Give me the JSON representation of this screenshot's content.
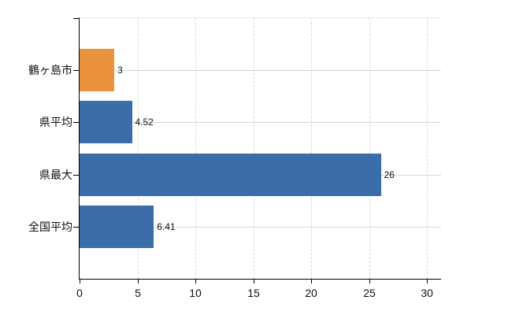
{
  "chart_data": {
    "type": "bar",
    "orientation": "horizontal",
    "title": "",
    "xlabel": "",
    "ylabel": "",
    "categories": [
      "鶴ヶ島市",
      "県平均",
      "県最大",
      "全国平均"
    ],
    "values": [
      3,
      4.52,
      26,
      6.41
    ],
    "value_labels": [
      "3",
      "4.52",
      "26",
      "6.41"
    ],
    "bar_colors": [
      "#eb933c",
      "#3b6ea8",
      "#3b6ea8",
      "#3b6ea8"
    ],
    "xlim": [
      0,
      31.2
    ],
    "x_ticks": [
      0,
      5,
      10,
      15,
      20,
      25,
      30
    ],
    "x_tick_labels": [
      "0",
      "5",
      "10",
      "15",
      "20",
      "25",
      "30"
    ],
    "grid": true,
    "legend": false
  },
  "colors": {
    "bar_blue": "#3b6ea8",
    "bar_orange": "#eb933c",
    "axis": "#000000",
    "gridline_horizontal": "#cfdacf",
    "gridline_vertical": "#d6dad6",
    "plot_top_border": "#d8dcd8",
    "text": "#111111",
    "background": "#ffffff"
  }
}
